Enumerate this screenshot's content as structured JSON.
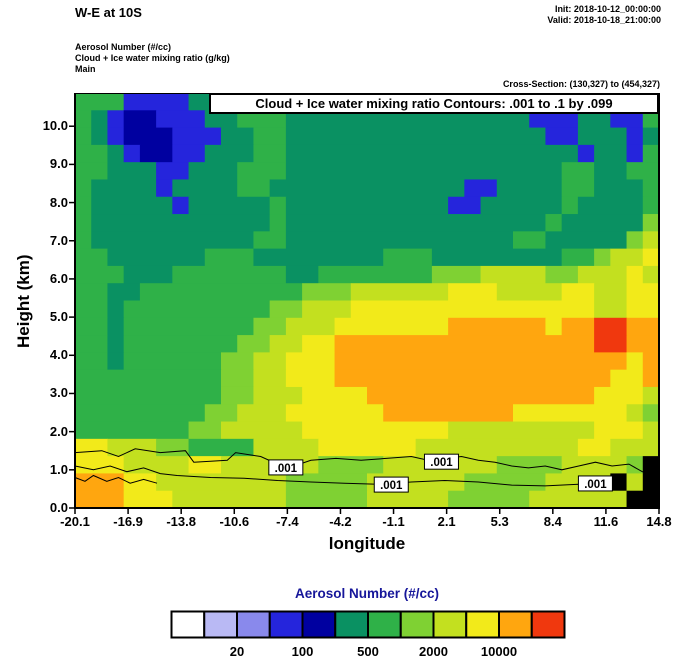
{
  "header": {
    "title": "W-E at 10S",
    "init_line": "Init: 2018-10-12_00:00:00",
    "valid_line": "Valid: 2018-10-18_21:00:00",
    "meta_lines": [
      "Aerosol Number  (#/cc)",
      "Cloud + Ice water mixing ratio  (g/kg)",
      "Main"
    ],
    "cross_section_note": "Cross-Section: (130,327) to (454,327)"
  },
  "chart_data": {
    "type": "heatmap",
    "banner": "Cloud + Ice water mixing ratio Contours: .001 to .1 by .099",
    "xlabel": "longitude",
    "ylabel": "Height (km)",
    "x_ticks": [
      "-20.1",
      "-16.9",
      "-13.8",
      "-10.6",
      "-7.4",
      "-4.2",
      "-1.1",
      "2.1",
      "5.3",
      "8.4",
      "11.6",
      "14.8"
    ],
    "y_ticks": [
      "0.0",
      "1.0",
      "2.0",
      "3.0",
      "4.0",
      "5.0",
      "6.0",
      "7.0",
      "8.0",
      "9.0",
      "10.0"
    ],
    "xlim": [
      -20.1,
      14.8
    ],
    "ylim": [
      0,
      10.87
    ],
    "fill_field": "Aerosol Number (#/cc)",
    "palette": [
      "#ffffff",
      "#b9b9f4",
      "#8989ec",
      "#2525dc",
      "#0000a0",
      "#0a9162",
      "#2fb148",
      "#7fd133",
      "#c3e01f",
      "#f2ea1a",
      "#ffa60f",
      "#f0380e",
      "#000000"
    ],
    "palette_note": "index 12 = terrain (black); labeled colorbar boundaries: 20,100,500,2000,10000 #/cc",
    "grid": {
      "cols": 36,
      "rows": 24,
      "row_order": "top-to-bottom (10.87 km down to 0 km)",
      "rle": [
        [
          [
            3,
            6
          ],
          [
            4,
            3
          ],
          [
            3,
            5
          ],
          [
            3,
            6
          ],
          [
            15,
            5
          ],
          [
            3,
            3
          ],
          [
            2,
            5
          ],
          [
            2,
            3
          ],
          [
            1,
            6
          ]
        ],
        [
          [
            1,
            6
          ],
          [
            1,
            5
          ],
          [
            1,
            3
          ],
          [
            2,
            4
          ],
          [
            3,
            3
          ],
          [
            2,
            5
          ],
          [
            3,
            6
          ],
          [
            15,
            5
          ],
          [
            3,
            3
          ],
          [
            2,
            5
          ],
          [
            2,
            3
          ],
          [
            1,
            6
          ]
        ],
        [
          [
            1,
            6
          ],
          [
            1,
            5
          ],
          [
            1,
            3
          ],
          [
            3,
            4
          ],
          [
            3,
            3
          ],
          [
            2,
            5
          ],
          [
            2,
            6
          ],
          [
            16,
            5
          ],
          [
            2,
            3
          ],
          [
            3,
            5
          ],
          [
            1,
            3
          ],
          [
            1,
            5
          ]
        ],
        [
          [
            2,
            6
          ],
          [
            1,
            5
          ],
          [
            1,
            3
          ],
          [
            2,
            4
          ],
          [
            2,
            3
          ],
          [
            3,
            5
          ],
          [
            2,
            6
          ],
          [
            18,
            5
          ],
          [
            1,
            3
          ],
          [
            2,
            5
          ],
          [
            1,
            3
          ],
          [
            1,
            6
          ]
        ],
        [
          [
            2,
            6
          ],
          [
            3,
            5
          ],
          [
            2,
            3
          ],
          [
            3,
            5
          ],
          [
            3,
            6
          ],
          [
            17,
            5
          ],
          [
            2,
            6
          ],
          [
            2,
            5
          ],
          [
            2,
            6
          ]
        ],
        [
          [
            1,
            6
          ],
          [
            4,
            5
          ],
          [
            1,
            3
          ],
          [
            4,
            5
          ],
          [
            2,
            6
          ],
          [
            12,
            5
          ],
          [
            2,
            3
          ],
          [
            4,
            5
          ],
          [
            2,
            6
          ],
          [
            3,
            5
          ],
          [
            1,
            6
          ]
        ],
        [
          [
            1,
            6
          ],
          [
            5,
            5
          ],
          [
            1,
            3
          ],
          [
            5,
            5
          ],
          [
            1,
            6
          ],
          [
            10,
            5
          ],
          [
            2,
            3
          ],
          [
            5,
            5
          ],
          [
            1,
            6
          ],
          [
            4,
            5
          ],
          [
            1,
            6
          ]
        ],
        [
          [
            1,
            6
          ],
          [
            11,
            5
          ],
          [
            1,
            6
          ],
          [
            16,
            5
          ],
          [
            1,
            6
          ],
          [
            5,
            5
          ],
          [
            1,
            7
          ]
        ],
        [
          [
            1,
            6
          ],
          [
            10,
            5
          ],
          [
            2,
            6
          ],
          [
            14,
            5
          ],
          [
            2,
            6
          ],
          [
            5,
            5
          ],
          [
            1,
            7
          ],
          [
            1,
            8
          ]
        ],
        [
          [
            2,
            6
          ],
          [
            6,
            5
          ],
          [
            3,
            6
          ],
          [
            8,
            5
          ],
          [
            3,
            6
          ],
          [
            8,
            5
          ],
          [
            2,
            6
          ],
          [
            1,
            7
          ],
          [
            2,
            8
          ],
          [
            1,
            9
          ]
        ],
        [
          [
            3,
            6
          ],
          [
            3,
            5
          ],
          [
            7,
            6
          ],
          [
            2,
            5
          ],
          [
            7,
            6
          ],
          [
            3,
            7
          ],
          [
            4,
            8
          ],
          [
            2,
            7
          ],
          [
            3,
            8
          ],
          [
            1,
            9
          ],
          [
            1,
            8
          ]
        ],
        [
          [
            2,
            6
          ],
          [
            2,
            5
          ],
          [
            10,
            6
          ],
          [
            3,
            7
          ],
          [
            6,
            8
          ],
          [
            3,
            9
          ],
          [
            4,
            8
          ],
          [
            2,
            9
          ],
          [
            2,
            8
          ],
          [
            2,
            9
          ]
        ],
        [
          [
            2,
            6
          ],
          [
            1,
            5
          ],
          [
            9,
            6
          ],
          [
            2,
            7
          ],
          [
            3,
            8
          ],
          [
            15,
            9
          ],
          [
            2,
            8
          ],
          [
            2,
            9
          ]
        ],
        [
          [
            2,
            6
          ],
          [
            1,
            5
          ],
          [
            8,
            6
          ],
          [
            2,
            7
          ],
          [
            3,
            8
          ],
          [
            7,
            9
          ],
          [
            6,
            10
          ],
          [
            1,
            9
          ],
          [
            2,
            10
          ],
          [
            2,
            11
          ],
          [
            2,
            10
          ]
        ],
        [
          [
            2,
            6
          ],
          [
            1,
            5
          ],
          [
            7,
            6
          ],
          [
            2,
            7
          ],
          [
            2,
            8
          ],
          [
            2,
            9
          ],
          [
            16,
            10
          ],
          [
            2,
            11
          ],
          [
            2,
            10
          ]
        ],
        [
          [
            2,
            6
          ],
          [
            1,
            5
          ],
          [
            6,
            6
          ],
          [
            2,
            7
          ],
          [
            2,
            8
          ],
          [
            3,
            9
          ],
          [
            18,
            10
          ],
          [
            1,
            9
          ],
          [
            1,
            10
          ]
        ],
        [
          [
            9,
            6
          ],
          [
            2,
            7
          ],
          [
            2,
            8
          ],
          [
            3,
            9
          ],
          [
            17,
            10
          ],
          [
            2,
            9
          ],
          [
            1,
            10
          ]
        ],
        [
          [
            9,
            6
          ],
          [
            2,
            7
          ],
          [
            3,
            8
          ],
          [
            4,
            9
          ],
          [
            14,
            10
          ],
          [
            3,
            9
          ],
          [
            1,
            8
          ]
        ],
        [
          [
            8,
            6
          ],
          [
            2,
            7
          ],
          [
            3,
            8
          ],
          [
            6,
            9
          ],
          [
            8,
            10
          ],
          [
            7,
            9
          ],
          [
            1,
            8
          ],
          [
            1,
            7
          ]
        ],
        [
          [
            7,
            6
          ],
          [
            2,
            7
          ],
          [
            5,
            8
          ],
          [
            9,
            9
          ],
          [
            9,
            8
          ],
          [
            3,
            9
          ],
          [
            1,
            8
          ]
        ],
        [
          [
            2,
            9
          ],
          [
            3,
            8
          ],
          [
            2,
            7
          ],
          [
            4,
            6
          ],
          [
            4,
            8
          ],
          [
            6,
            9
          ],
          [
            10,
            8
          ],
          [
            2,
            9
          ],
          [
            3,
            8
          ]
        ],
        [
          [
            3,
            9
          ],
          [
            4,
            8
          ],
          [
            2,
            9
          ],
          [
            6,
            8
          ],
          [
            4,
            7
          ],
          [
            7,
            8
          ],
          [
            4,
            7
          ],
          [
            4,
            8
          ],
          [
            1,
            7
          ],
          [
            1,
            12
          ]
        ],
        [
          [
            3,
            10
          ],
          [
            2,
            9
          ],
          [
            8,
            8
          ],
          [
            5,
            7
          ],
          [
            6,
            8
          ],
          [
            5,
            7
          ],
          [
            4,
            8
          ],
          [
            1,
            12
          ],
          [
            1,
            8
          ],
          [
            1,
            12
          ]
        ],
        [
          [
            3,
            10
          ],
          [
            3,
            9
          ],
          [
            7,
            8
          ],
          [
            5,
            7
          ],
          [
            5,
            8
          ],
          [
            5,
            7
          ],
          [
            6,
            8
          ],
          [
            2,
            12
          ]
        ]
      ]
    },
    "contours": {
      "values": [
        0.001,
        0.1
      ],
      "lines": [
        [
          [
            -20.1,
            1.45
          ],
          [
            -18.5,
            1.5
          ],
          [
            -17.5,
            1.35
          ],
          [
            -16.5,
            1.55
          ],
          [
            -15,
            1.45
          ],
          [
            -13.5,
            1.5
          ],
          [
            -13,
            1.2
          ],
          [
            -11,
            1.25
          ],
          [
            -10.5,
            1.45
          ],
          [
            -9,
            1.35
          ],
          [
            -8,
            1.15
          ],
          [
            -7,
            1.1
          ],
          [
            -6,
            1.25
          ],
          [
            -4.5,
            1.3
          ],
          [
            -3,
            1.25
          ],
          [
            -1.5,
            1.3
          ],
          [
            0,
            1.35
          ],
          [
            1,
            1.25
          ],
          [
            2,
            1.3
          ],
          [
            3,
            1.35
          ],
          [
            4,
            1.25
          ],
          [
            5,
            1.2
          ],
          [
            6,
            1.1
          ],
          [
            7,
            1.05
          ],
          [
            8,
            1.1
          ],
          [
            9,
            1.0
          ],
          [
            10,
            1.1
          ],
          [
            11,
            1.2
          ],
          [
            12,
            1.1
          ],
          [
            13,
            1.15
          ],
          [
            13.8,
            0.95
          ],
          [
            14.3,
            0.9
          ]
        ],
        [
          [
            -20.1,
            1.1
          ],
          [
            -19,
            1.0
          ],
          [
            -18,
            1.1
          ],
          [
            -17,
            0.95
          ],
          [
            -16,
            1.05
          ],
          [
            -15,
            0.9
          ],
          [
            -14,
            0.85
          ],
          [
            -12,
            0.8
          ],
          [
            -10,
            0.78
          ],
          [
            -8,
            0.72
          ],
          [
            -6,
            0.68
          ],
          [
            -4,
            0.65
          ],
          [
            -2,
            0.62
          ],
          [
            0,
            0.68
          ],
          [
            2,
            0.72
          ],
          [
            4,
            0.68
          ],
          [
            6,
            0.6
          ],
          [
            8,
            0.58
          ],
          [
            10,
            0.62
          ],
          [
            11.5,
            0.6
          ],
          [
            12.2,
            0.55
          ]
        ],
        [
          [
            -20.1,
            0.8
          ],
          [
            -19.5,
            0.7
          ],
          [
            -19,
            0.85
          ],
          [
            -18.2,
            0.7
          ],
          [
            -17.5,
            0.8
          ],
          [
            -16.8,
            0.65
          ],
          [
            -16,
            0.75
          ],
          [
            -15.2,
            0.65
          ]
        ]
      ],
      "labels": [
        {
          "text": ".001",
          "lon": -7.5,
          "km": 1.05
        },
        {
          "text": ".001",
          "lon": -1.2,
          "km": 0.6
        },
        {
          "text": ".001",
          "lon": 1.8,
          "km": 1.2
        },
        {
          "text": ".001",
          "lon": 11.0,
          "km": 0.63
        }
      ]
    },
    "colorbar": {
      "title": "Aerosol Number  (#/cc)",
      "title_color": "#16169a",
      "cells": [
        0,
        1,
        2,
        3,
        4,
        5,
        6,
        7,
        8,
        9,
        10,
        11
      ],
      "labels": [
        {
          "text": "20",
          "at": 2
        },
        {
          "text": "100",
          "at": 4
        },
        {
          "text": "500",
          "at": 6
        },
        {
          "text": "2000",
          "at": 8
        },
        {
          "text": "10000",
          "at": 10
        }
      ]
    }
  }
}
